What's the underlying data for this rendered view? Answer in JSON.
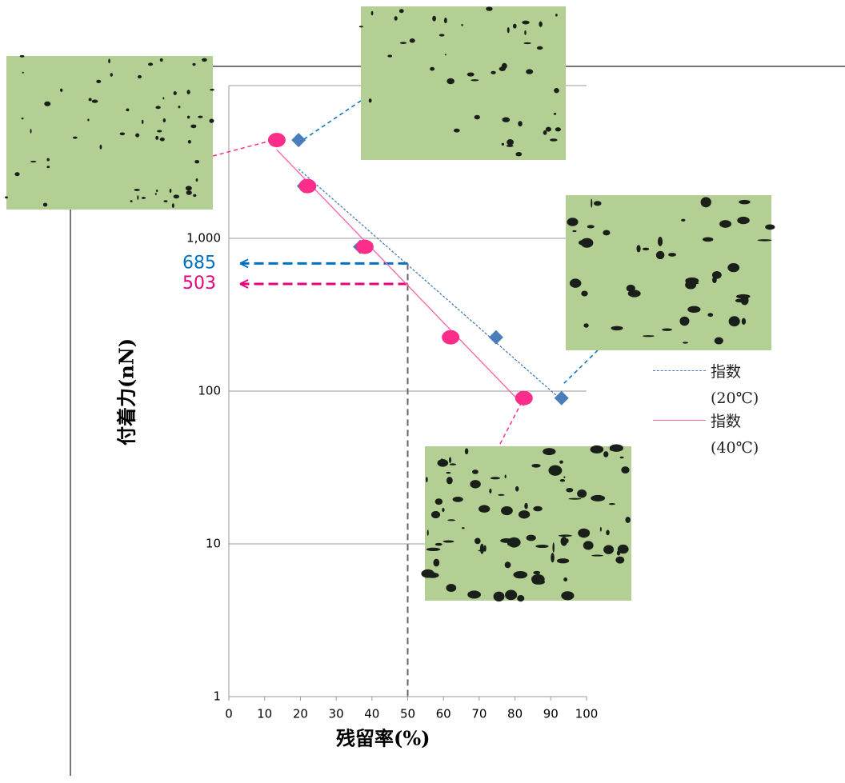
{
  "chart_data": {
    "type": "scatter",
    "x_label": "残留率(%)",
    "y_label": "付着力(nN)",
    "xlim": [
      0,
      100
    ],
    "xticks": [
      0,
      10,
      20,
      30,
      40,
      50,
      60,
      70,
      80,
      90,
      100
    ],
    "ylim": [
      1,
      10000
    ],
    "yticks": [
      1,
      10,
      100,
      {
        "value": 1000,
        "label": "1,000"
      }
    ],
    "log_y": true,
    "grid": true,
    "series": [
      {
        "name": "指数 (20℃)",
        "color": "#4a7ebb",
        "marker": "diamond",
        "trend_color": "#4a7ebb",
        "x": [
          19.5,
          21,
          36.7,
          74.7,
          93
        ],
        "values": [
          4400,
          2200,
          880,
          225,
          90
        ]
      },
      {
        "name": "指数 (40℃)",
        "color": "#ff2d8a",
        "marker": "circle",
        "trend_color": "#ff5fa8",
        "x": [
          13.4,
          22,
          38,
          62,
          82.5
        ],
        "values": [
          4400,
          2200,
          880,
          225,
          90
        ]
      }
    ],
    "annotations": [
      {
        "x": 50,
        "value": 685,
        "color": "#0070c0"
      },
      {
        "x": 50,
        "value": 503,
        "color": "#e6007e"
      }
    ]
  }
}
